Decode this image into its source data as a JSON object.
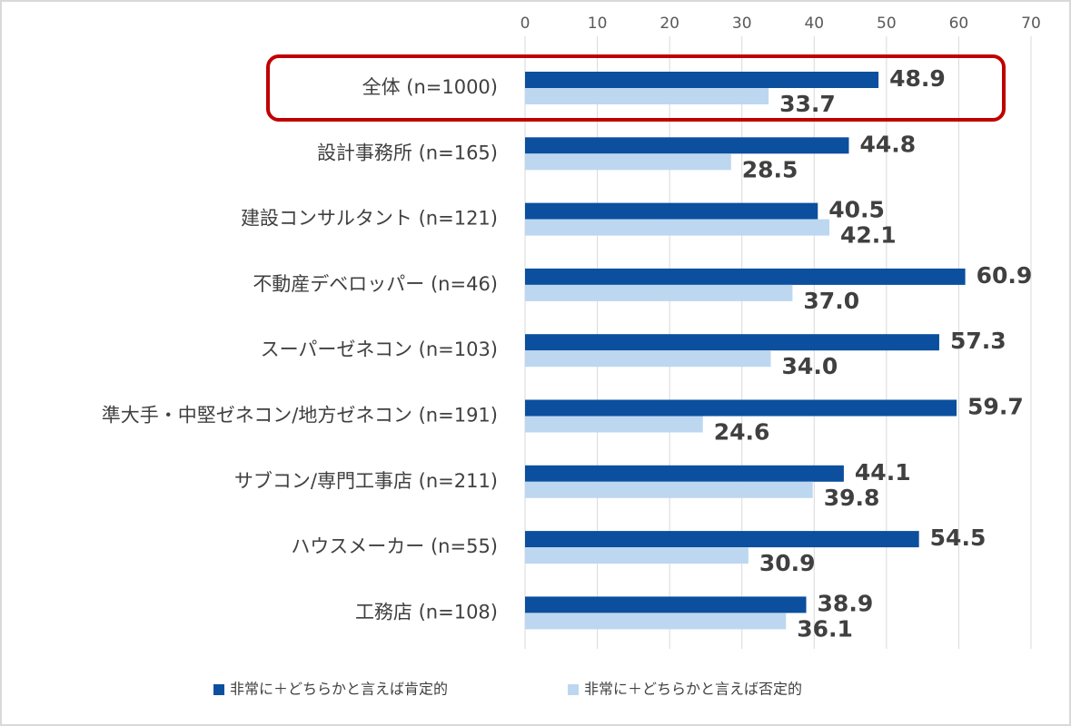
{
  "chart_data": {
    "type": "hbar",
    "categories": [
      "全体 (n=1000)",
      "設計事務所 (n=165)",
      "建設コンサルタント (n=121)",
      "不動産デベロッパー (n=46)",
      "スーパーゼネコン (n=103)",
      "準大手・中堅ゼネコン/地方ゼネコン (n=191)",
      "サブコン/専門工事店 (n=211)",
      "ハウスメーカー (n=55)",
      "工務店 (n=108)"
    ],
    "series": [
      {
        "name": "非常に＋どちらかと言えば肯定的",
        "color": "#0b4f9e",
        "values": [
          48.9,
          44.8,
          40.5,
          60.9,
          57.3,
          59.7,
          44.1,
          54.5,
          38.9
        ],
        "value_labels": [
          "48.9",
          "44.8",
          "40.5",
          "60.9",
          "57.3",
          "59.7",
          "44.1",
          "54.5",
          "38.9"
        ]
      },
      {
        "name": "非常に＋どちらかと言えば否定的",
        "color": "#bdd7f0",
        "values": [
          33.7,
          28.5,
          42.1,
          37,
          34,
          24.6,
          39.8,
          30.9,
          36.1
        ],
        "value_labels": [
          "33.7",
          "28.5",
          "42.1",
          "37.0",
          "34.0",
          "24.6",
          "39.8",
          "30.9",
          "36.1"
        ]
      }
    ],
    "xlim": [
      0,
      70
    ],
    "xticks": [
      0,
      10,
      20,
      30,
      40,
      50,
      60,
      70
    ],
    "grid": true,
    "legend": "bottom"
  }
}
